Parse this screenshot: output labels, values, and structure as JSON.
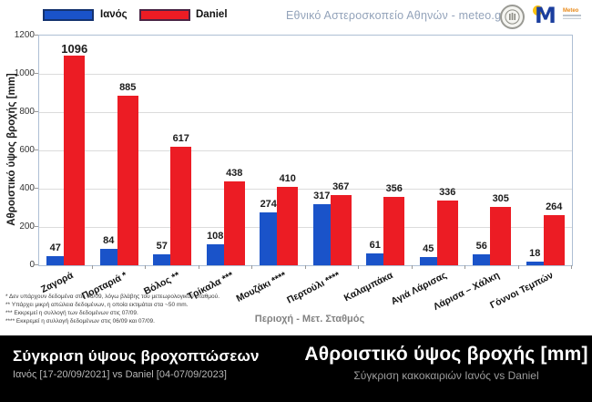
{
  "header": {
    "source_text": "Εθνικό Αστεροσκοπείο Αθηνών - meteo.gr",
    "meteo_logo_text": "Meteo",
    "accent_blue": "#1a53c9",
    "accent_red": "#ec1c24"
  },
  "chart_data": {
    "type": "bar",
    "title": "",
    "categories": [
      "Ζαγορά",
      "Πορταριά *",
      "Βόλος **",
      "Τρίκαλα ***",
      "Μουζάκι ****",
      "Περτούλι ****",
      "Καλαμπάκα",
      "Αγιά Λάρισας",
      "Λάρισα – Χάλκη",
      "Γόννοι Τεμπών"
    ],
    "series": [
      {
        "name": "Ιανός",
        "color": "#1a53c9",
        "values": [
          47,
          84,
          57,
          108,
          274,
          317,
          61,
          45,
          56,
          18
        ]
      },
      {
        "name": "Daniel",
        "color": "#ec1c24",
        "values": [
          1096,
          885,
          617,
          438,
          410,
          367,
          356,
          336,
          305,
          264
        ]
      }
    ],
    "xlabel": "Περιοχή - Μετ. Σταθμός",
    "ylabel": "Αθροιστικό ύψος βροχής [mm]",
    "ylim": [
      0,
      1200
    ],
    "yticks": [
      0,
      200,
      400,
      600,
      800,
      1000,
      1200
    ],
    "grid": true,
    "legend_position": "top"
  },
  "footnotes": [
    "* Δεν υπάρχουν δεδομένα στις 06/09, λόγω βλάβης του μετεωρολογικού σταθμού.",
    "** Υπάρχει μικρή απώλεια δεδομένων, η οποία εκτιμάται στα ~50 mm.",
    "*** Εκκρεμεί η συλλογή των δεδομένων στις 07/09.",
    "**** Εκκρεμεί η συλλογή δεδομένων στις 06/09 και 07/09."
  ],
  "footer": {
    "left_title": "Σύγκριση ύψους βροχοπτώσεων",
    "left_subtitle": "Ιανός [17-20/09/2021] vs Daniel [04-07/09/2023]",
    "right_title": "Αθροιστικό ύψος βροχής [mm]",
    "right_subtitle": "Σύγκριση κακοκαιριών Ιανός vs Daniel"
  }
}
